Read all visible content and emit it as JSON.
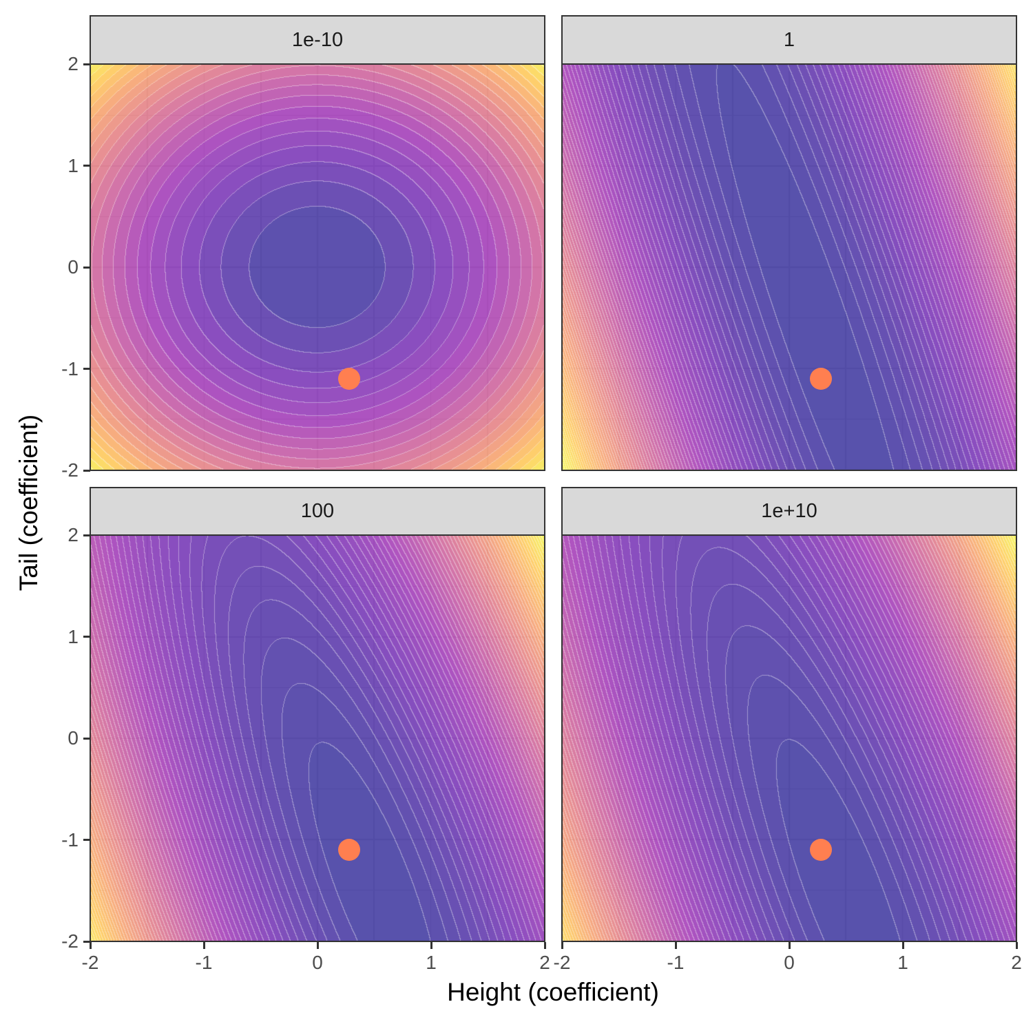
{
  "chart_data": {
    "type": "contour",
    "title": "",
    "xlabel": "Height (coefficient)",
    "ylabel": "Tail (coefficient)",
    "xlim": [
      -2,
      2
    ],
    "ylim": [
      -2,
      2
    ],
    "x_ticks": [
      "-2",
      "-1",
      "0",
      "1",
      "2"
    ],
    "y_ticks": [
      "-2",
      "-1",
      "0",
      "1",
      "2"
    ],
    "grid": true,
    "colormap": "plasma",
    "fill_alpha": 0.7,
    "point_color": "#FF7F50",
    "facets": [
      {
        "label": "1e-10",
        "minimum": [
          0.0,
          0.0
        ],
        "shape": "circular",
        "point": [
          0.28,
          -1.1
        ]
      },
      {
        "label": "1",
        "minimum": [
          0.2,
          -0.5
        ],
        "shape": "narrow tilted ellipse",
        "point": [
          0.28,
          -1.1
        ]
      },
      {
        "label": "100",
        "minimum": [
          0.45,
          -1.3
        ],
        "shape": "tilted ellipse",
        "point": [
          0.28,
          -1.1
        ]
      },
      {
        "label": "1e+10",
        "minimum": [
          0.45,
          -1.4
        ],
        "shape": "tilted ellipse",
        "point": [
          0.28,
          -1.1
        ]
      }
    ]
  }
}
